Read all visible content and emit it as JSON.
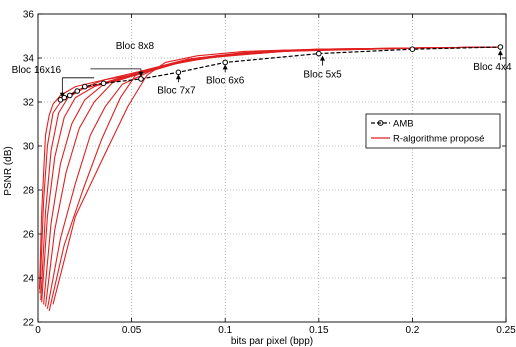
{
  "chart_data": {
    "type": "line",
    "xlabel": "bits par pixel (bpp)",
    "ylabel": "PSNR (dB)",
    "xlim": [
      0,
      0.25
    ],
    "ylim": [
      22,
      36
    ],
    "xticks": [
      0,
      0.05,
      0.1,
      0.15,
      0.2,
      0.25
    ],
    "xtick_labels": [
      "0",
      "0.05",
      "0.1",
      "0.15",
      "0.2",
      "0.25"
    ],
    "yticks": [
      22,
      24,
      26,
      28,
      30,
      32,
      34,
      36
    ],
    "ytick_labels": [
      "22",
      "24",
      "26",
      "28",
      "30",
      "32",
      "34",
      "36"
    ],
    "grid": true,
    "legend_position": "right",
    "series": [
      {
        "name": "AMB",
        "style": "dashed-circle",
        "color": "#000000",
        "x": [
          0.012,
          0.014,
          0.017,
          0.021,
          0.025,
          0.035,
          0.055,
          0.075,
          0.1,
          0.15,
          0.2,
          0.247
        ],
        "y": [
          32.1,
          32.2,
          32.3,
          32.5,
          32.7,
          32.85,
          33.05,
          33.35,
          33.8,
          34.2,
          34.4,
          34.5
        ]
      },
      {
        "name": "R-algorithme proposé",
        "color": "#e02020",
        "curves": [
          {
            "x": [
              0.0008,
              0.002,
              0.004,
              0.006,
              0.008,
              0.012,
              0.02,
              0.035,
              0.055,
              0.08,
              0.12,
              0.2,
              0.247
            ],
            "y": [
              23.5,
              27.0,
              30.5,
              31.4,
              31.9,
              32.3,
              32.7,
              33.0,
              33.3,
              33.9,
              34.3,
              34.45,
              34.5
            ]
          },
          {
            "x": [
              0.001,
              0.003,
              0.005,
              0.008,
              0.012,
              0.02,
              0.035,
              0.055,
              0.08,
              0.12,
              0.2,
              0.247
            ],
            "y": [
              23.3,
              27.5,
              30.0,
              31.5,
              32.0,
              32.5,
              33.0,
              33.4,
              33.95,
              34.3,
              34.45,
              34.5
            ]
          },
          {
            "x": [
              0.0015,
              0.004,
              0.007,
              0.011,
              0.016,
              0.024,
              0.04,
              0.06,
              0.085,
              0.12,
              0.2,
              0.247
            ],
            "y": [
              23.0,
              27.0,
              29.8,
              31.5,
              32.2,
              32.6,
              33.0,
              33.5,
              34.0,
              34.3,
              34.45,
              34.5
            ]
          },
          {
            "x": [
              0.002,
              0.005,
              0.009,
              0.014,
              0.02,
              0.03,
              0.045,
              0.065,
              0.09,
              0.13,
              0.2,
              0.247
            ],
            "y": [
              22.9,
              26.8,
              29.5,
              31.3,
              32.2,
              32.7,
              33.1,
              33.6,
              34.0,
              34.3,
              34.45,
              34.5
            ]
          },
          {
            "x": [
              0.003,
              0.007,
              0.012,
              0.018,
              0.025,
              0.035,
              0.05,
              0.07,
              0.095,
              0.13,
              0.2,
              0.247
            ],
            "y": [
              22.8,
              26.5,
              29.2,
              31.0,
              32.1,
              32.8,
              33.2,
              33.7,
              34.1,
              34.35,
              34.45,
              34.5
            ]
          },
          {
            "x": [
              0.004,
              0.009,
              0.015,
              0.022,
              0.03,
              0.04,
              0.055,
              0.075,
              0.1,
              0.14,
              0.2,
              0.247
            ],
            "y": [
              22.7,
              26.2,
              28.8,
              30.8,
              32.0,
              32.9,
              33.3,
              33.8,
              34.1,
              34.35,
              34.45,
              34.5
            ]
          },
          {
            "x": [
              0.005,
              0.012,
              0.02,
              0.028,
              0.036,
              0.045,
              0.06,
              0.08,
              0.11,
              0.15,
              0.2,
              0.247
            ],
            "y": [
              22.6,
              25.8,
              28.3,
              30.5,
              31.8,
              32.8,
              33.4,
              33.9,
              34.2,
              34.4,
              34.45,
              34.5
            ]
          },
          {
            "x": [
              0.006,
              0.014,
              0.024,
              0.034,
              0.044,
              0.052,
              0.065,
              0.085,
              0.11,
              0.15,
              0.2,
              0.247
            ],
            "y": [
              22.5,
              25.5,
              28.0,
              30.3,
              32.2,
              33.2,
              33.6,
              34.0,
              34.25,
              34.4,
              34.45,
              34.5
            ]
          },
          {
            "x": [
              0.008,
              0.02,
              0.035,
              0.048,
              0.058,
              0.068,
              0.085,
              0.11,
              0.15,
              0.2,
              0.247
            ],
            "y": [
              22.8,
              26.8,
              29.5,
              31.8,
              33.2,
              33.8,
              34.1,
              34.3,
              34.4,
              34.45,
              34.5
            ]
          }
        ]
      }
    ],
    "annotations": [
      {
        "text": "Bloc 16x16",
        "x": 0.013,
        "y": 32.1
      },
      {
        "text": "Bloc 8x8",
        "x": 0.055,
        "y": 33.05
      },
      {
        "text": "Bloc 7x7",
        "x": 0.075,
        "y": 33.35
      },
      {
        "text": "Bloc 6x6",
        "x": 0.1,
        "y": 33.8
      },
      {
        "text": "Bloc 5x5",
        "x": 0.152,
        "y": 34.2
      },
      {
        "text": "Bloc 4x4",
        "x": 0.247,
        "y": 34.45
      }
    ]
  }
}
